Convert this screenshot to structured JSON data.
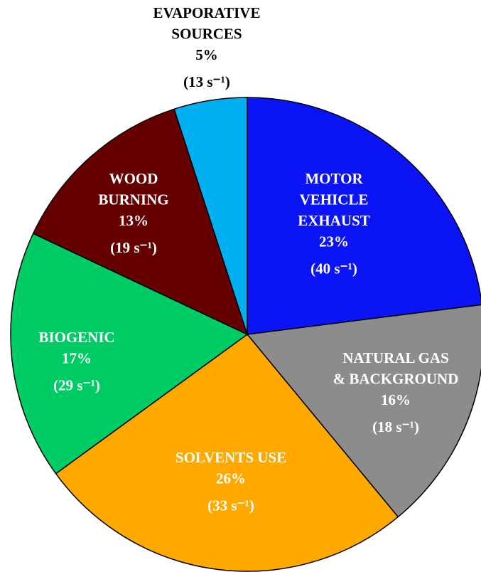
{
  "chart_data": {
    "type": "pie",
    "categories": [
      "MOTOR\nVEHICLE\nEXHAUST",
      "NATURAL GAS\n& BACKGROUND",
      "SOLVENTS USE",
      "BIOGENIC",
      "WOOD\nBURNING",
      "EVAPORATIVE\nSOURCES"
    ],
    "values": [
      23,
      16,
      26,
      17,
      13,
      5
    ],
    "value_labels": [
      "23%",
      "16%",
      "26%",
      "17%",
      "13%",
      "5%"
    ],
    "rate_labels": [
      "(40 s⁻¹)",
      "(18 s⁻¹)",
      "(33 s⁻¹)",
      "(29 s⁻¹)",
      "(19 s⁻¹)",
      "(13 s⁻¹)"
    ],
    "colors": [
      "#0a14f5",
      "#8c8c8c",
      "#ffa800",
      "#00cc66",
      "#660000",
      "#00b0f0"
    ],
    "label_colors": [
      "#ffffff",
      "#ffffff",
      "#ffffff",
      "#ffffff",
      "#ffffff",
      "#000000"
    ]
  }
}
